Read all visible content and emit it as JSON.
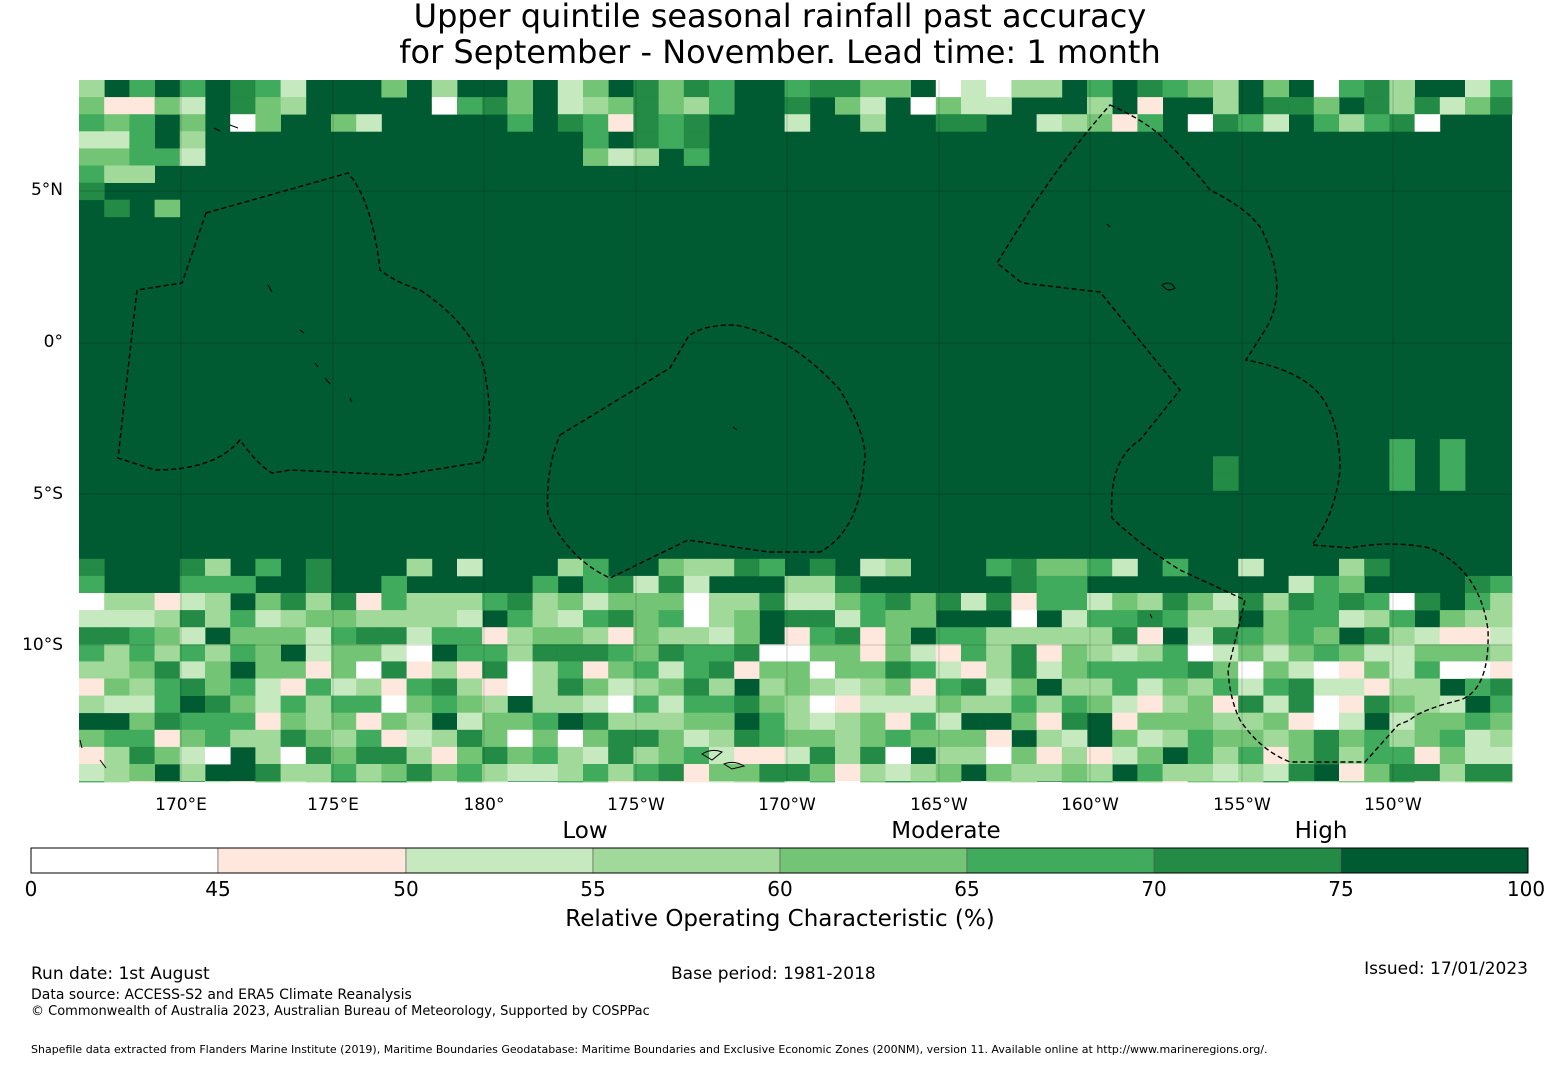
{
  "title": {
    "line1": "Upper quintile seasonal rainfall past accuracy",
    "line2": "for September - November. Lead time: 1 month"
  },
  "map": {
    "lat_labels": [
      "5°N",
      "0°",
      "5°S",
      "10°S"
    ],
    "lon_labels": [
      "170°E",
      "175°E",
      "180°",
      "175°W",
      "170°W",
      "165°W",
      "160°W",
      "155°W",
      "150°W"
    ],
    "background_color": "#005a32",
    "eez_line_color": "#000000"
  },
  "colorbar": {
    "category_labels": [
      "Low",
      "Moderate",
      "High"
    ],
    "ticks": [
      "0",
      "45",
      "50",
      "55",
      "60",
      "65",
      "70",
      "75",
      "100"
    ],
    "colors": [
      "#ffffff",
      "#fee8de",
      "#c7e9c0",
      "#a1d99b",
      "#74c476",
      "#41ab5d",
      "#238b45",
      "#005a32"
    ],
    "title": "Relative Operating Characteristic (%)"
  },
  "footer": {
    "run_date": "Run date: 1st August",
    "base_period": "Base period: 1981-2018",
    "issued": "Issued: 17/01/2023",
    "data_source": "Data source: ACCESS-S2 and ERA5 Climate Reanalysis",
    "copyright": "© Commonwealth of Australia 2023, Australian Bureau of Meteorology, Supported by COSPPac",
    "shapefile": "Shapefile data extracted from Flanders Marine Institute (2019), Maritime Boundaries Geodatabase: Maritime Boundaries and Exclusive Economic Zones (200NM), version 11. Available online at http://www.marineregions.org/."
  }
}
